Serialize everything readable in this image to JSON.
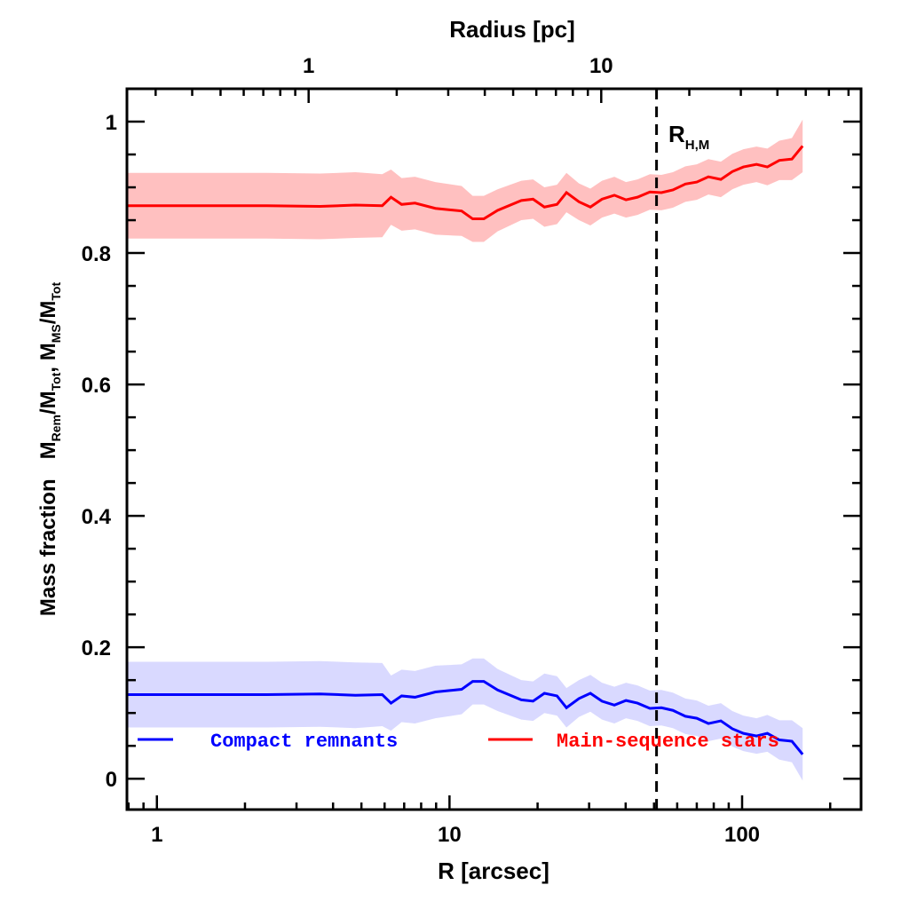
{
  "chart_data": {
    "type": "line",
    "title": "",
    "xlabel": "R [arcsec]",
    "x2label": "Radius [pc]",
    "ylabel": "Mass fraction",
    "ylabel_math": {
      "a": "M",
      "a_sub": "Rem",
      "b": "/M",
      "b_sub": "Tot",
      "c": ", M",
      "c_sub": "MS",
      "d": "/M",
      "d_sub": "Tot"
    },
    "xscale": "log",
    "xlim": [
      0.79,
      255
    ],
    "ylim": [
      -0.047,
      1.05
    ],
    "x2_per_x": 0.303,
    "xticks": [
      {
        "v": 1,
        "label": "1"
      },
      {
        "v": 10,
        "label": "10"
      },
      {
        "v": 100,
        "label": "100"
      }
    ],
    "x2ticks": [
      {
        "v": 1,
        "label": "1"
      },
      {
        "v": 10,
        "label": "10"
      }
    ],
    "yticks": [
      {
        "v": 0,
        "label": "0"
      },
      {
        "v": 0.2,
        "label": "0.2"
      },
      {
        "v": 0.4,
        "label": "0.4"
      },
      {
        "v": 0.6,
        "label": "0.6"
      },
      {
        "v": 0.8,
        "label": "0.8"
      },
      {
        "v": 1,
        "label": "1"
      }
    ],
    "x": [
      0.79,
      2.38,
      3.61,
      4.77,
      5.89,
      6.31,
      6.86,
      7.62,
      8.95,
      11.0,
      12.0,
      13.1,
      14.6,
      17.6,
      19.3,
      21.1,
      23.3,
      25.1,
      27.7,
      30.3,
      33.2,
      36.6,
      40.1,
      43.9,
      48.4,
      53.0,
      58.0,
      64.0,
      70.0,
      76.7,
      84.6,
      92.6,
      101,
      112,
      122,
      134,
      148,
      161
    ],
    "series": [
      {
        "name": "Compact remnants",
        "color": "#0000ff",
        "band_color": "#d9d9ff",
        "values": [
          0.128,
          0.128,
          0.129,
          0.127,
          0.128,
          0.115,
          0.126,
          0.124,
          0.132,
          0.136,
          0.148,
          0.148,
          0.135,
          0.12,
          0.118,
          0.13,
          0.126,
          0.108,
          0.122,
          0.13,
          0.118,
          0.112,
          0.119,
          0.115,
          0.107,
          0.108,
          0.104,
          0.095,
          0.092,
          0.084,
          0.088,
          0.076,
          0.069,
          0.065,
          0.069,
          0.059,
          0.057,
          0.037
        ],
        "err": [
          0.05,
          0.05,
          0.05,
          0.05,
          0.048,
          0.042,
          0.04,
          0.04,
          0.04,
          0.038,
          0.035,
          0.035,
          0.032,
          0.03,
          0.03,
          0.03,
          0.03,
          0.03,
          0.028,
          0.028,
          0.028,
          0.028,
          0.027,
          0.027,
          0.027,
          0.027,
          0.027,
          0.027,
          0.027,
          0.027,
          0.027,
          0.027,
          0.027,
          0.027,
          0.028,
          0.03,
          0.032,
          0.04
        ]
      },
      {
        "name": "Main-sequence stars",
        "color": "#ff0000",
        "band_color": "#ffc0c0",
        "values": [
          0.872,
          0.872,
          0.871,
          0.873,
          0.872,
          0.885,
          0.874,
          0.876,
          0.868,
          0.864,
          0.852,
          0.852,
          0.865,
          0.88,
          0.882,
          0.87,
          0.874,
          0.892,
          0.878,
          0.87,
          0.882,
          0.888,
          0.881,
          0.885,
          0.893,
          0.892,
          0.896,
          0.905,
          0.908,
          0.916,
          0.912,
          0.924,
          0.931,
          0.935,
          0.931,
          0.941,
          0.943,
          0.963
        ],
        "err": [
          0.05,
          0.05,
          0.05,
          0.05,
          0.048,
          0.042,
          0.04,
          0.04,
          0.04,
          0.038,
          0.035,
          0.035,
          0.032,
          0.03,
          0.03,
          0.03,
          0.03,
          0.03,
          0.028,
          0.028,
          0.028,
          0.028,
          0.027,
          0.027,
          0.027,
          0.027,
          0.027,
          0.027,
          0.027,
          0.027,
          0.027,
          0.027,
          0.027,
          0.027,
          0.028,
          0.03,
          0.032,
          0.04
        ]
      }
    ],
    "vline": {
      "x": 51,
      "label": "R",
      "label_sub": "H,M",
      "style": "dashed"
    },
    "legend_position": "bottom",
    "grid": false
  }
}
